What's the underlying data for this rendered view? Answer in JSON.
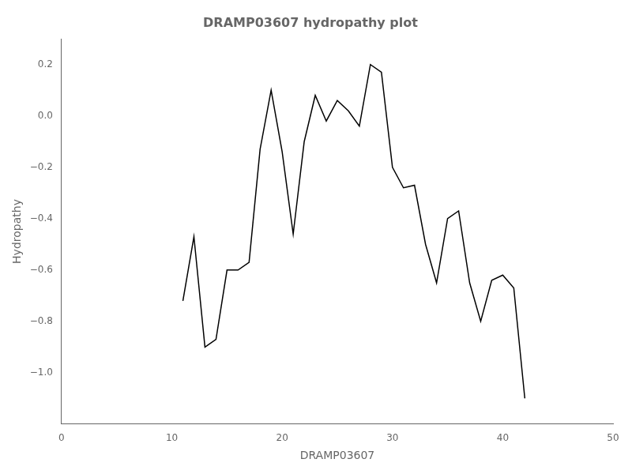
{
  "chart_data": {
    "type": "line",
    "title": "DRAMP03607 hydropathy plot",
    "xlabel": "DRAMP03607",
    "ylabel": "Hydropathy",
    "xlim": [
      0,
      50
    ],
    "ylim": [
      -1.2,
      0.3
    ],
    "xticks": [
      0,
      10,
      20,
      30,
      40,
      50
    ],
    "yticks": [
      0.2,
      {
        "value": 0.0,
        "label": "0.0"
      },
      {
        "value": -0.2,
        "label": "−0.2"
      },
      {
        "value": -0.4,
        "label": "−0.4"
      },
      {
        "value": -0.6,
        "label": "−0.6"
      },
      {
        "value": -0.8,
        "label": "−0.8"
      },
      {
        "value": -1.0,
        "label": "−1.0"
      }
    ],
    "color": "#000000",
    "grid": false,
    "x": [
      11,
      12,
      13,
      14,
      15,
      16,
      17,
      18,
      19,
      20,
      21,
      22,
      23,
      24,
      25,
      26,
      27,
      28,
      29,
      30,
      31,
      32,
      33,
      34,
      35,
      36,
      37,
      38,
      39,
      40,
      41,
      42
    ],
    "values": [
      -0.72,
      -0.47,
      -0.9,
      -0.87,
      -0.6,
      -0.6,
      -0.57,
      -0.13,
      0.1,
      -0.14,
      -0.46,
      -0.1,
      0.08,
      -0.02,
      0.06,
      0.02,
      -0.04,
      0.2,
      0.17,
      -0.2,
      -0.28,
      -0.27,
      -0.5,
      -0.65,
      -0.4,
      -0.37,
      -0.65,
      -0.8,
      -0.64,
      -0.62,
      -0.67,
      -1.1
    ]
  }
}
